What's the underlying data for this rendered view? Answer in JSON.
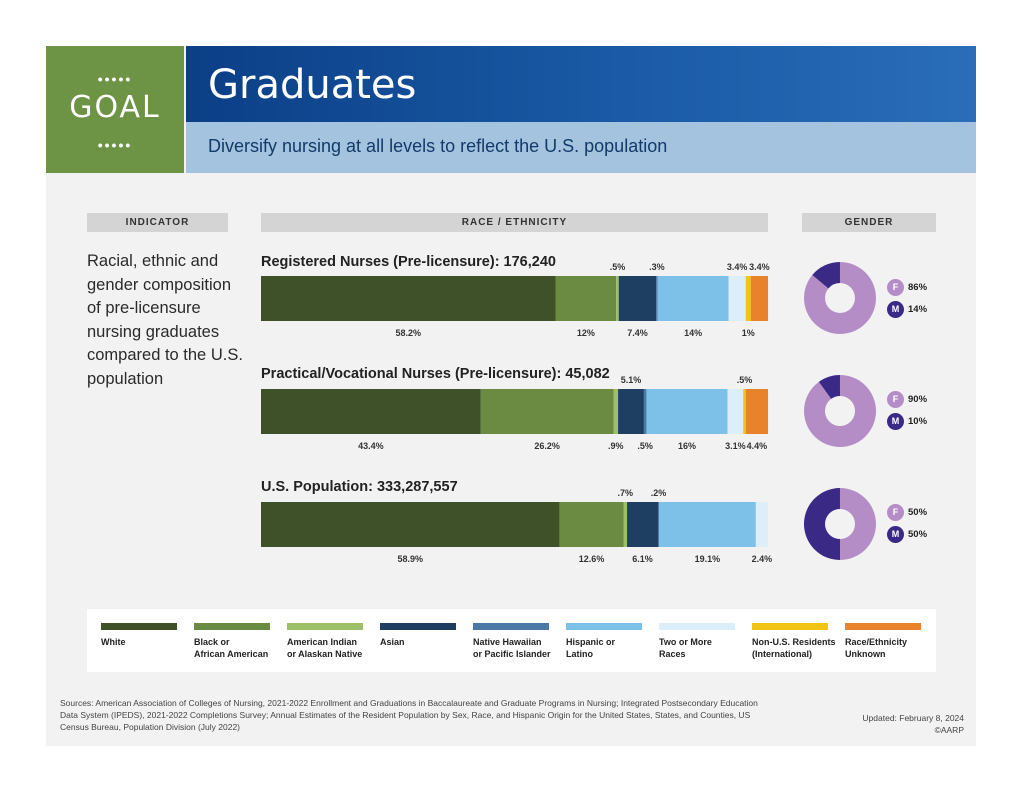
{
  "header": {
    "goal_label": "GOAL",
    "goal_dots": "•••••",
    "title": "Graduates",
    "subtitle": "Diversify nursing at all levels to reflect the U.S. population"
  },
  "columns": {
    "indicator": "INDICATOR",
    "race": "RACE / ETHNICITY",
    "gender": "GENDER"
  },
  "indicator_text": "Racial, ethnic and gender composition of pre-licensure nursing graduates compared to the U.S. population",
  "colors": {
    "White": "#3f5128",
    "Black or African American": "#6b8b43",
    "American Indian or Alaskan Native": "#9dbf67",
    "Asian": "#1e3f62",
    "Native Hawaiian or Pacific Islander": "#4a79a6",
    "Hispanic or Latino": "#7dc0e8",
    "Two or More Races": "#dbeefa",
    "Non-U.S. Residents (International)": "#f2c418",
    "Race/Ethnicity Unknown": "#e8822b",
    "female": "#b48dc6",
    "male": "#3a2a86"
  },
  "chart_data": {
    "type": "bar",
    "orientation": "horizontal-stacked-100",
    "categories_order": [
      "White",
      "Black or African American",
      "American Indian or Alaskan Native",
      "Asian",
      "Native Hawaiian or Pacific Islander",
      "Hispanic or Latino",
      "Two or More Races",
      "Non-U.S. Residents (International)",
      "Race/Ethnicity Unknown"
    ],
    "series": [
      {
        "name": "Registered Nurses (Pre-licensure): 176,240",
        "values": [
          58.2,
          12,
          0.5,
          7.4,
          0.3,
          14,
          3.4,
          1,
          3.4
        ],
        "labels": [
          "58.2%",
          "12%",
          ".5%",
          "7.4%",
          ".3%",
          "14%",
          "3.4%",
          "1%",
          "3.4%"
        ],
        "label_pos": [
          "below",
          "below",
          "above",
          "below",
          "above",
          "below",
          "above",
          "below",
          "above"
        ],
        "gender": {
          "female": "86%",
          "male": "14%",
          "female_value": 86,
          "male_value": 14
        }
      },
      {
        "name": "Practical/Vocational Nurses (Pre-licensure): 45,082",
        "values": [
          43.4,
          26.2,
          0.9,
          5.1,
          0.5,
          16,
          3.1,
          0.5,
          4.4
        ],
        "labels": [
          "43.4%",
          "26.2%",
          ".9%",
          "5.1%",
          ".5%",
          "16%",
          "3.1%",
          ".5%",
          "4.4%"
        ],
        "label_pos": [
          "below",
          "below",
          "below",
          "above",
          "below",
          "below",
          "below",
          "above",
          "below"
        ],
        "gender": {
          "female": "90%",
          "male": "10%",
          "female_value": 90,
          "male_value": 10
        }
      },
      {
        "name": "U.S. Population: 333,287,557",
        "values": [
          58.9,
          12.6,
          0.7,
          6.1,
          0.2,
          19.1,
          2.4,
          0,
          0
        ],
        "labels": [
          "58.9%",
          "12.6%",
          ".7%",
          "6.1%",
          ".2%",
          "19.1%",
          "2.4%",
          "",
          ""
        ],
        "label_pos": [
          "below",
          "below",
          "above",
          "below",
          "above",
          "below",
          "below",
          "",
          ""
        ],
        "gender": {
          "female": "50%",
          "male": "50%",
          "female_value": 50,
          "male_value": 50
        }
      }
    ],
    "gender_keys": {
      "female": "F",
      "male": "M"
    }
  },
  "legend": [
    {
      "label_1": "White",
      "label_2": ""
    },
    {
      "label_1": "Black or",
      "label_2": "African American"
    },
    {
      "label_1": "American Indian",
      "label_2": "or Alaskan Native"
    },
    {
      "label_1": "Asian",
      "label_2": ""
    },
    {
      "label_1": "Native Hawaiian",
      "label_2": "or Pacific Islander"
    },
    {
      "label_1": "Hispanic or",
      "label_2": "Latino"
    },
    {
      "label_1": "Two or More",
      "label_2": "Races"
    },
    {
      "label_1": "Non-U.S. Residents",
      "label_2": "(International)"
    },
    {
      "label_1": "Race/Ethnicity",
      "label_2": "Unknown"
    }
  ],
  "footer": {
    "sources": "Sources: American Association of Colleges of Nursing, 2021-2022 Enrollment and Graduations in Baccalaureate and Graduate Programs in Nursing; Integrated Postsecondary Education Data System (IPEDS), 2021-2022 Completions Survey; Annual Estimates of the Resident Population by Sex, Race, and Hispanic Origin for the United States, States, and Counties, US Census Bureau, Population Division (July 2022)",
    "updated": "Updated: February 8, 2024",
    "copyright": "©AARP"
  }
}
